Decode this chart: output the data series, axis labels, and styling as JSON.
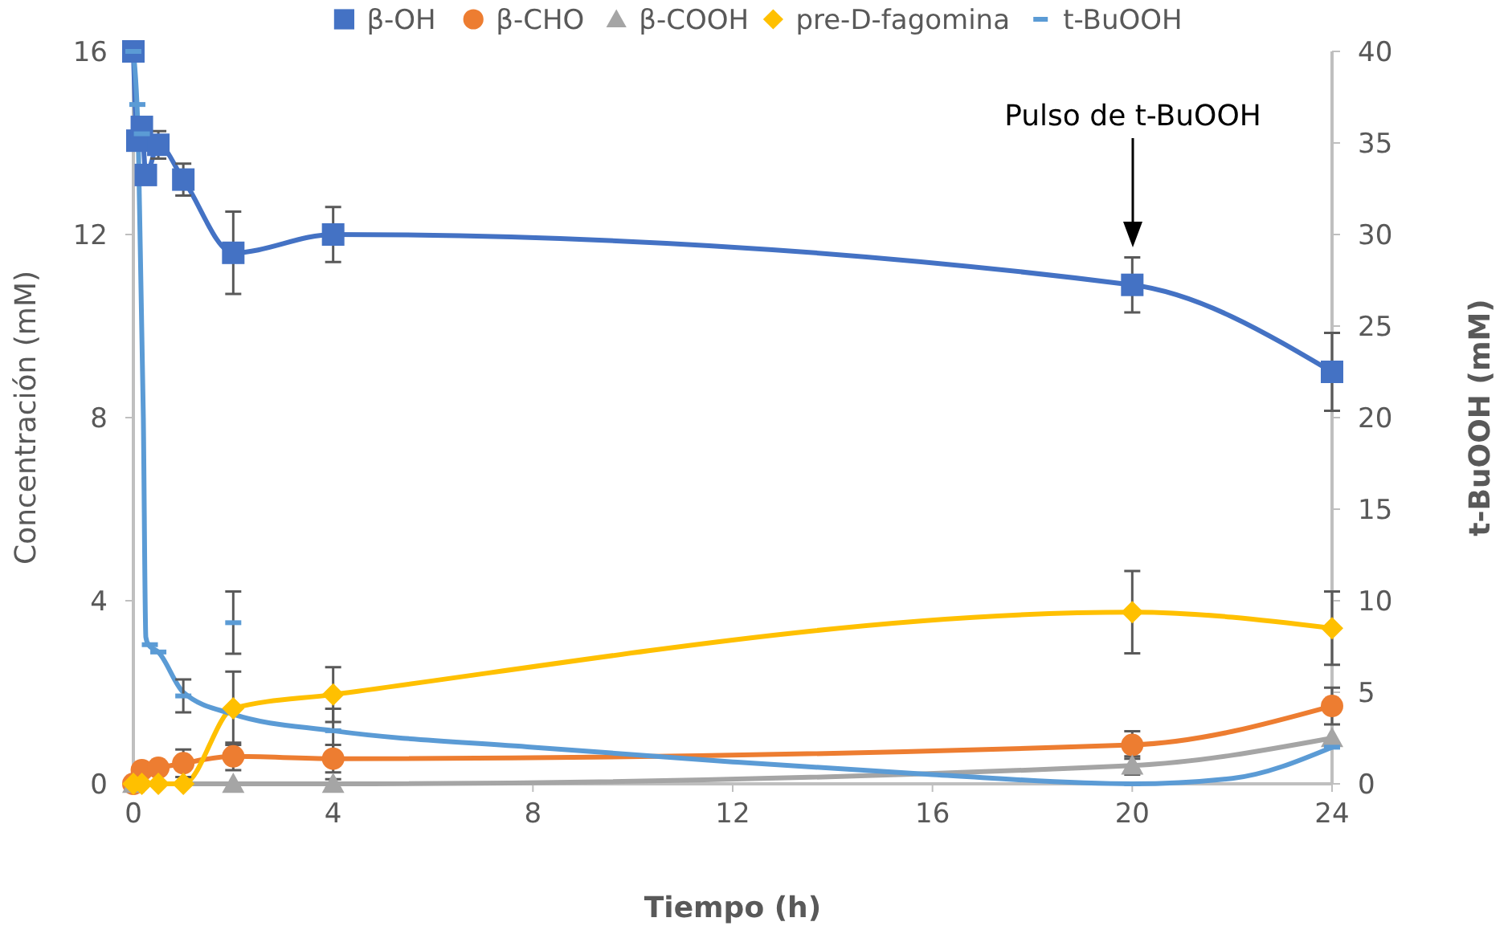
{
  "chart_data": {
    "type": "line",
    "xlabel": "Tiempo (h)",
    "ylabel": "Concentración (mM)",
    "y2label": "t-BuOOH (mM)",
    "xlim": [
      0,
      24
    ],
    "xticks": [
      0,
      4,
      8,
      12,
      16,
      20,
      24
    ],
    "ylim": [
      0,
      16
    ],
    "yticks": [
      0,
      4,
      8,
      12,
      16
    ],
    "y2lim": [
      0,
      40
    ],
    "y2ticks": [
      0,
      5,
      10,
      15,
      20,
      25,
      30,
      35,
      40
    ],
    "grid": false,
    "legend": "top",
    "line_style": "solid",
    "annotations": [
      "Pulso de t-BuOOH"
    ],
    "series": [
      {
        "name": "β-OH",
        "color": "#4472c4",
        "marker": "square",
        "x": [
          0,
          0.08,
          0.17,
          0.25,
          0.5,
          1,
          2,
          4,
          20,
          24
        ],
        "values": [
          16,
          14.05,
          14.35,
          13.3,
          13.96,
          13.2,
          11.6,
          12.0,
          10.9,
          9.0
        ],
        "errors": [
          null,
          null,
          null,
          null,
          0.3,
          0.35,
          0.9,
          0.6,
          0.6,
          0.85
        ]
      },
      {
        "name": "β-CHO",
        "color": "#ed7d31",
        "marker": "circle",
        "x": [
          0,
          0.17,
          0.5,
          1,
          2,
          4,
          20,
          24
        ],
        "values": [
          0,
          0.3,
          0.35,
          0.45,
          0.6,
          0.55,
          0.85,
          1.7
        ],
        "errors": [
          null,
          null,
          null,
          0.3,
          0.3,
          0.3,
          0.3,
          0.4
        ]
      },
      {
        "name": "β-COOH",
        "color": "#a5a5a5",
        "marker": "triangle",
        "x": [
          0,
          2,
          4,
          20,
          24
        ],
        "values": [
          0,
          0,
          0,
          0.4,
          1.0
        ],
        "errors": [
          null,
          null,
          0.1,
          0.2,
          null
        ]
      },
      {
        "name": "pre-D-fagomina",
        "color": "#ffc000",
        "marker": "diamond",
        "x": [
          0,
          0.17,
          0.5,
          1,
          2,
          4,
          20,
          24
        ],
        "values": [
          0,
          0,
          0,
          0,
          1.65,
          1.95,
          3.75,
          3.4
        ],
        "errors": [
          null,
          null,
          null,
          null,
          0.8,
          0.6,
          0.9,
          0.8
        ]
      },
      {
        "name": "t-BuOOH",
        "type": "scatter",
        "axis": "y2",
        "color": "#5b9bd5",
        "marker": "square",
        "x": [
          0,
          0.08,
          0.17,
          0.33,
          0.5,
          1,
          2,
          4,
          20,
          24
        ],
        "values": [
          40,
          37.1,
          35.5,
          7.6,
          7.2,
          4.8,
          8.8,
          2.9,
          0,
          2.0
        ],
        "errors": [
          null,
          null,
          null,
          null,
          null,
          0.9,
          1.7,
          1.2,
          null,
          null
        ]
      },
      {
        "type": "line",
        "axis": "y2",
        "color": "#5b9bd5",
        "marker": "none",
        "x": [
          0,
          0.1,
          0.2,
          0.25,
          0.3,
          0.5,
          1,
          2,
          4,
          8,
          12,
          16,
          20,
          22,
          24
        ],
        "values": [
          40,
          35,
          20,
          8,
          7.6,
          7.2,
          5,
          3.8,
          2.9,
          2.0,
          1.2,
          0.5,
          0,
          0.3,
          2.0
        ]
      }
    ]
  }
}
